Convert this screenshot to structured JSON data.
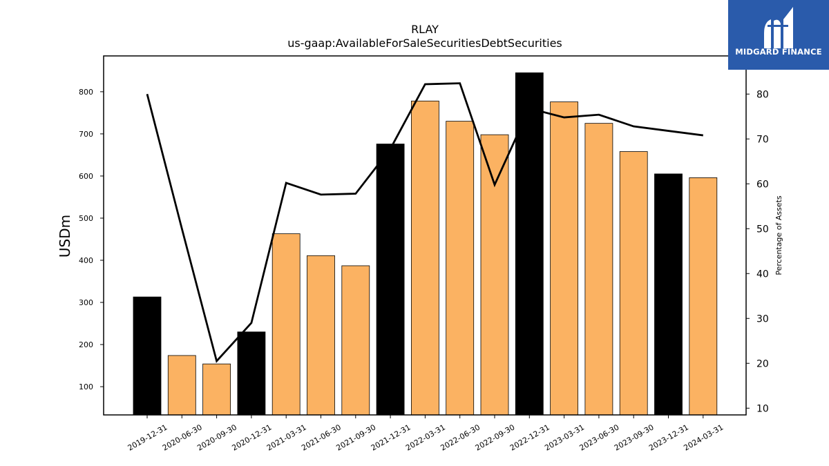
{
  "chart_data": {
    "type": "bar",
    "title": "RLAY",
    "subtitle": "us-gaap:AvailableForSaleSecuritiesDebtSecurities",
    "ylabel": "USDm",
    "y2label": "Percentage of Assets",
    "ylim": [
      33,
      885
    ],
    "y2lim": [
      8.5,
      88.5
    ],
    "yticks": [
      100,
      200,
      300,
      400,
      500,
      600,
      700,
      800
    ],
    "y2ticks": [
      10,
      20,
      30,
      40,
      50,
      60,
      70,
      80
    ],
    "categories": [
      "2019-12-31",
      "2020-06-30",
      "2020-09-30",
      "2020-12-31",
      "2021-03-31",
      "2021-06-30",
      "2021-09-30",
      "2021-12-31",
      "2022-03-31",
      "2022-06-30",
      "2022-09-30",
      "2022-12-31",
      "2023-03-31",
      "2023-06-30",
      "2023-09-30",
      "2023-12-31",
      "2024-03-31"
    ],
    "series": [
      {
        "kind": "bar",
        "axis": "left",
        "values": [
          313,
          174,
          154,
          230,
          463,
          411,
          387,
          676,
          778,
          730,
          698,
          845,
          776,
          725,
          658,
          605,
          596
        ],
        "highlight": [
          true,
          false,
          false,
          true,
          false,
          false,
          false,
          true,
          false,
          false,
          false,
          true,
          false,
          false,
          false,
          true,
          false
        ]
      },
      {
        "kind": "line",
        "axis": "right",
        "values": [
          80.0,
          50.0,
          20.5,
          29.0,
          60.2,
          57.6,
          57.8,
          67.8,
          82.2,
          82.4,
          59.8,
          76.8,
          74.8,
          75.4,
          72.8,
          71.8,
          70.8
        ]
      }
    ],
    "colors": {
      "bar": "#fbb262",
      "highlight_bar": "#000000",
      "line": "#000000"
    },
    "grid": false,
    "legend": "none"
  },
  "logo": {
    "text": "MIDGARD FINANCE",
    "icon": "midgard-m-icon",
    "background": "#2a5bab"
  }
}
